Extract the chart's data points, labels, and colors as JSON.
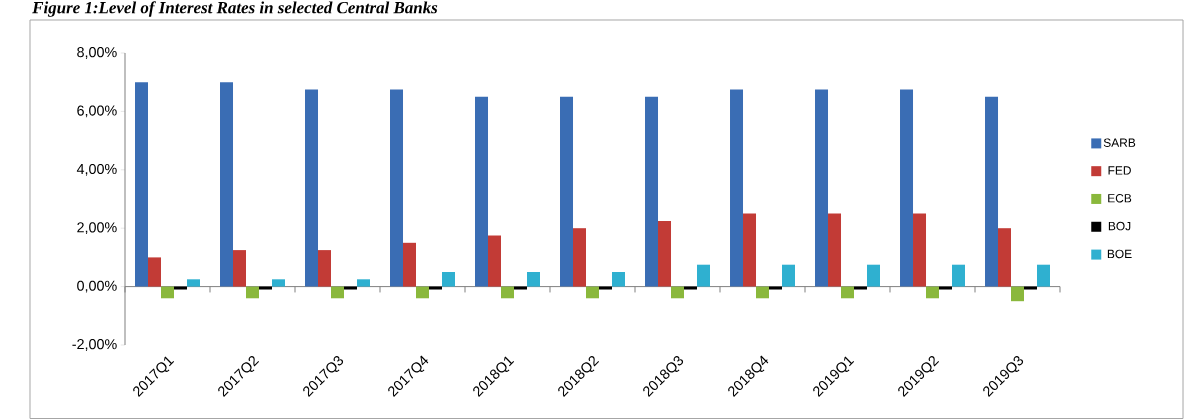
{
  "chart_data": {
    "type": "bar",
    "title": "Figure 1:Level of Interest Rates in selected Central Banks",
    "categories": [
      "2017Q1",
      "2017Q2",
      "2017Q3",
      "2017Q4",
      "2018Q1",
      "2018Q2",
      "2018Q3",
      "2018Q4",
      "2019Q1",
      "2019Q2",
      "2019Q3"
    ],
    "series": [
      {
        "name": "SARB",
        "color": "#3a6db4",
        "values": [
          7.0,
          7.0,
          6.75,
          6.75,
          6.5,
          6.5,
          6.5,
          6.75,
          6.75,
          6.75,
          6.5
        ]
      },
      {
        "name": "FED",
        "color": "#c23b36",
        "values": [
          1.0,
          1.25,
          1.25,
          1.5,
          1.75,
          2.0,
          2.25,
          2.5,
          2.5,
          2.5,
          2.0
        ]
      },
      {
        "name": "ECB",
        "color": "#8ab83c",
        "values": [
          -0.4,
          -0.4,
          -0.4,
          -0.4,
          -0.4,
          -0.4,
          -0.4,
          -0.4,
          -0.4,
          -0.4,
          -0.5
        ]
      },
      {
        "name": "BOJ",
        "color": "#000000",
        "values": [
          -0.1,
          -0.1,
          -0.1,
          -0.1,
          -0.1,
          -0.1,
          -0.1,
          -0.1,
          -0.1,
          -0.1,
          -0.1
        ]
      },
      {
        "name": "BOE",
        "color": "#2fb0d0",
        "values": [
          0.25,
          0.25,
          0.25,
          0.5,
          0.5,
          0.5,
          0.75,
          0.75,
          0.75,
          0.75,
          0.75
        ]
      }
    ],
    "ylim": [
      -2,
      8
    ],
    "yticks": [
      {
        "value": -2,
        "label": "-2,00%"
      },
      {
        "value": 0,
        "label": "0,00%"
      },
      {
        "value": 2,
        "label": "2,00%"
      },
      {
        "value": 4,
        "label": "4,00%"
      },
      {
        "value": 6,
        "label": "6,00%"
      },
      {
        "value": 8,
        "label": "8,00%"
      }
    ],
    "legend": "right"
  }
}
